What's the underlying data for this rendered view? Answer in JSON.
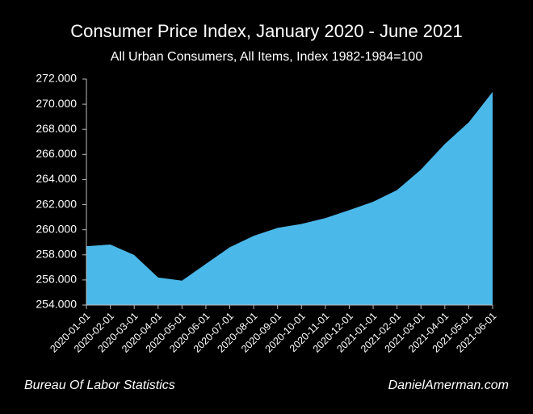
{
  "chart_data": {
    "type": "area",
    "title": "Consumer Price Index, January 2020 - June 2021",
    "subtitle": "All Urban Consumers, All Items, Index 1982-1984=100",
    "source": "Bureau Of Labor Statistics",
    "credit": "DanielAmerman.com",
    "categories": [
      "2020-01-01",
      "2020-02-01",
      "2020-03-01",
      "2020-04-01",
      "2020-05-01",
      "2020-06-01",
      "2020-07-01",
      "2020-08-01",
      "2020-09-01",
      "2020-10-01",
      "2020-11-01",
      "2020-12-01",
      "2021-01-01",
      "2021-02-01",
      "2021-03-01",
      "2021-04-01",
      "2021-05-01",
      "2021-06-01"
    ],
    "values": [
      258.687,
      258.824,
      257.989,
      256.192,
      255.942,
      257.282,
      258.604,
      259.511,
      260.149,
      260.462,
      260.927,
      261.56,
      262.231,
      263.161,
      264.793,
      266.832,
      268.551,
      270.981
    ],
    "color": "#4bb8ea",
    "ylim": [
      254,
      272
    ],
    "yticks": [
      {
        "value": 254,
        "label": "254.000"
      },
      {
        "value": 256,
        "label": "256.000"
      },
      {
        "value": 258,
        "label": "258.000"
      },
      {
        "value": 260,
        "label": "260.000"
      },
      {
        "value": 262,
        "label": "262.000"
      },
      {
        "value": 264,
        "label": "264.000"
      },
      {
        "value": 266,
        "label": "266.000"
      },
      {
        "value": 268,
        "label": "268.000"
      },
      {
        "value": 270,
        "label": "270.000"
      },
      {
        "value": 272,
        "label": "272.000"
      }
    ],
    "grid": false
  }
}
